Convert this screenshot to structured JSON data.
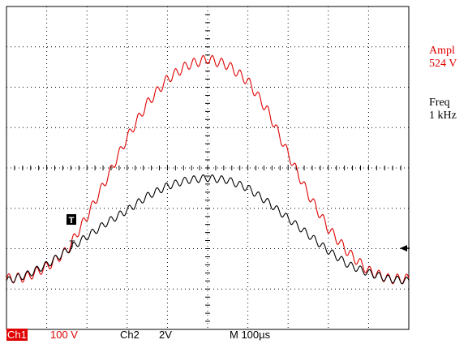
{
  "measurements": {
    "amplitude": {
      "label": "Ampl",
      "value": "524 V",
      "color": "#e00000"
    },
    "frequency": {
      "label": "Freq",
      "value": "1 kHz",
      "color": "#000000"
    }
  },
  "status_bar": {
    "ch1_label": "Ch1",
    "ch1_scale": "100 V",
    "ch2_label": "Ch2",
    "ch2_scale": "2V",
    "timebase": "M  100µs"
  },
  "markers": {
    "trigger_level": "T",
    "trigger_point": "T"
  },
  "colors": {
    "ch1": "#e00000",
    "ch2": "#000000",
    "grid": "#000000",
    "background": "#ffffff"
  },
  "chart_data": {
    "type": "line",
    "grid": true,
    "title": "",
    "xlabel": "",
    "ylabel": "",
    "xlim": [
      0,
      1000
    ],
    "ylim": [
      -4,
      4
    ],
    "x_unit": "µs",
    "y_unit": "div",
    "series": [
      {
        "channel": "Ch1",
        "color": "#e00000",
        "x": [
          0,
          50,
          100,
          150,
          200,
          250,
          300,
          350,
          400,
          450,
          500,
          550,
          600,
          650,
          700,
          750,
          800,
          850,
          900,
          950,
          1000
        ],
        "values": [
          -2.75,
          -2.7,
          -2.45,
          -2.05,
          -1.2,
          -0.25,
          0.75,
          1.6,
          2.2,
          2.55,
          2.7,
          2.55,
          2.15,
          1.4,
          0.35,
          -0.65,
          -1.5,
          -2.1,
          -2.55,
          -2.75,
          -2.75
        ]
      },
      {
        "channel": "Ch2",
        "color": "#000000",
        "x": [
          0,
          50,
          100,
          150,
          200,
          250,
          300,
          350,
          400,
          450,
          500,
          550,
          600,
          650,
          700,
          750,
          800,
          850,
          900,
          950,
          1000
        ],
        "values": [
          -2.8,
          -2.65,
          -2.4,
          -2.05,
          -1.7,
          -1.35,
          -1.05,
          -0.7,
          -0.45,
          -0.3,
          -0.25,
          -0.3,
          -0.5,
          -0.85,
          -1.25,
          -1.65,
          -2.05,
          -2.4,
          -2.6,
          -2.75,
          -2.8
        ]
      }
    ]
  }
}
